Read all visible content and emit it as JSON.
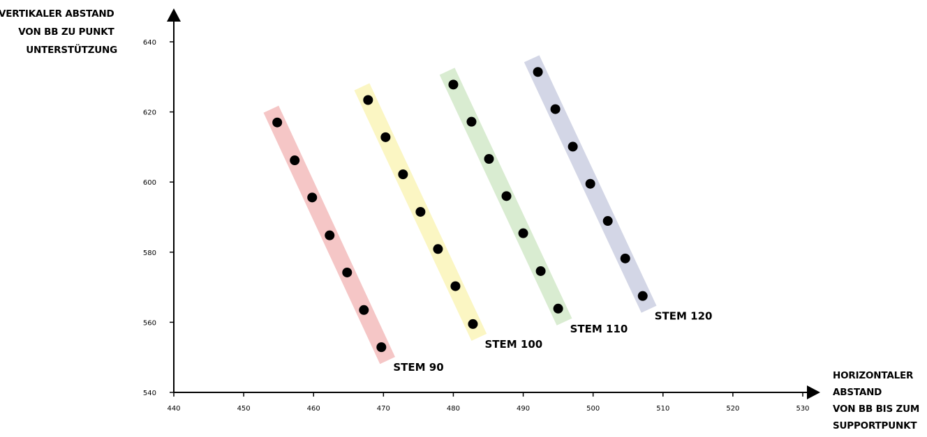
{
  "chart_data": {
    "type": "scatter",
    "ylabel_lines": [
      "VERTIKALER ABSTAND",
      "VON BB ZU PUNKT",
      "UNTERSTÜTZUNG"
    ],
    "xlabel_lines": [
      "HORIZONTALER",
      "ABSTAND",
      "VON BB BIS ZUM",
      "SUPPORTPUNKT"
    ],
    "xlim": [
      440,
      530
    ],
    "ylim": [
      540,
      640
    ],
    "xticks": [
      440,
      450,
      460,
      470,
      480,
      490,
      500,
      510,
      520,
      530
    ],
    "yticks": [
      540,
      560,
      580,
      600,
      620,
      640
    ],
    "grid": false,
    "series": [
      {
        "name": "STEM 90",
        "color": "#f5c6c6",
        "points": [
          [
            454.8,
            617.0
          ],
          [
            457.3,
            606.2
          ],
          [
            459.8,
            595.6
          ],
          [
            462.3,
            584.8
          ],
          [
            464.8,
            574.2
          ],
          [
            467.2,
            563.5
          ],
          [
            469.7,
            552.9
          ]
        ]
      },
      {
        "name": "STEM 100",
        "color": "#fbf6c3",
        "points": [
          [
            467.8,
            623.4
          ],
          [
            470.3,
            612.8
          ],
          [
            472.8,
            602.2
          ],
          [
            475.3,
            591.5
          ],
          [
            477.8,
            580.9
          ],
          [
            480.3,
            570.3
          ],
          [
            482.8,
            559.5
          ]
        ]
      },
      {
        "name": "STEM 110",
        "color": "#d9ecd1",
        "points": [
          [
            480.0,
            627.8
          ],
          [
            482.6,
            617.2
          ],
          [
            485.1,
            606.6
          ],
          [
            487.6,
            596.0
          ],
          [
            490.0,
            585.4
          ],
          [
            492.5,
            574.6
          ],
          [
            495.0,
            563.9
          ]
        ]
      },
      {
        "name": "STEM 120",
        "color": "#d3d6e6",
        "points": [
          [
            492.1,
            631.4
          ],
          [
            494.6,
            620.8
          ],
          [
            497.1,
            610.1
          ],
          [
            499.6,
            599.5
          ],
          [
            502.1,
            588.9
          ],
          [
            504.6,
            578.2
          ],
          [
            507.1,
            567.5
          ]
        ]
      }
    ]
  }
}
